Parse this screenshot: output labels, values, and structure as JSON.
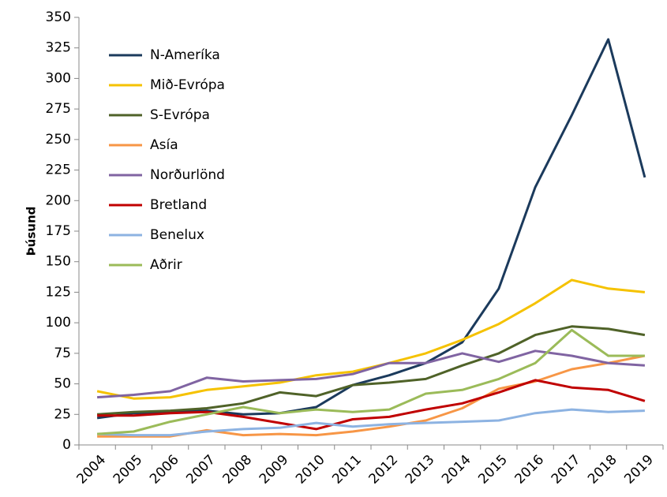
{
  "chart_data": {
    "type": "line",
    "y_label": "Þúsund",
    "categories": [
      "2004",
      "2005",
      "2006",
      "2007",
      "2008",
      "2009",
      "2010",
      "2011",
      "2012",
      "2013",
      "2014",
      "2015",
      "2016",
      "2017",
      "2018",
      "2019"
    ],
    "series": [
      {
        "name": "N-Ameríka",
        "color": "#1b3a5c",
        "values": [
          22,
          26,
          27,
          28,
          25,
          26,
          31,
          49,
          57,
          67,
          84,
          128,
          211,
          270,
          332,
          219
        ]
      },
      {
        "name": "Mið-Evrópa",
        "color": "#f5c200",
        "values": [
          44,
          38,
          39,
          45,
          48,
          51,
          57,
          60,
          67,
          75,
          86,
          99,
          116,
          135,
          128,
          125
        ]
      },
      {
        "name": "S-Evrópa",
        "color": "#4f6228",
        "values": [
          25,
          27,
          28,
          30,
          34,
          43,
          40,
          49,
          51,
          54,
          65,
          75,
          90,
          97,
          95,
          90
        ]
      },
      {
        "name": "Asía",
        "color": "#f79646",
        "values": [
          7,
          7,
          7,
          12,
          8,
          9,
          8,
          11,
          15,
          20,
          30,
          46,
          52,
          62,
          67,
          73
        ]
      },
      {
        "name": "Norðurlönd",
        "color": "#8064a2",
        "values": [
          39,
          41,
          44,
          55,
          52,
          53,
          54,
          58,
          67,
          67,
          75,
          68,
          77,
          73,
          67,
          65
        ]
      },
      {
        "name": "Bretland",
        "color": "#c00000",
        "values": [
          24,
          24,
          26,
          27,
          23,
          18,
          13,
          21,
          23,
          29,
          34,
          43,
          53,
          47,
          45,
          36
        ]
      },
      {
        "name": "Benelux",
        "color": "#8db3e2",
        "values": [
          9,
          8,
          8,
          11,
          13,
          14,
          18,
          15,
          17,
          18,
          19,
          20,
          26,
          29,
          27,
          28
        ]
      },
      {
        "name": "Aðrir",
        "color": "#9bbb59",
        "values": [
          9,
          11,
          19,
          25,
          31,
          26,
          29,
          27,
          29,
          42,
          45,
          54,
          67,
          94,
          73,
          73
        ]
      }
    ],
    "ylim": [
      0,
      350
    ],
    "yticks": [
      0,
      25,
      50,
      75,
      100,
      125,
      150,
      175,
      200,
      225,
      250,
      275,
      300,
      325,
      350
    ],
    "grid": false,
    "legend": "upper left"
  }
}
